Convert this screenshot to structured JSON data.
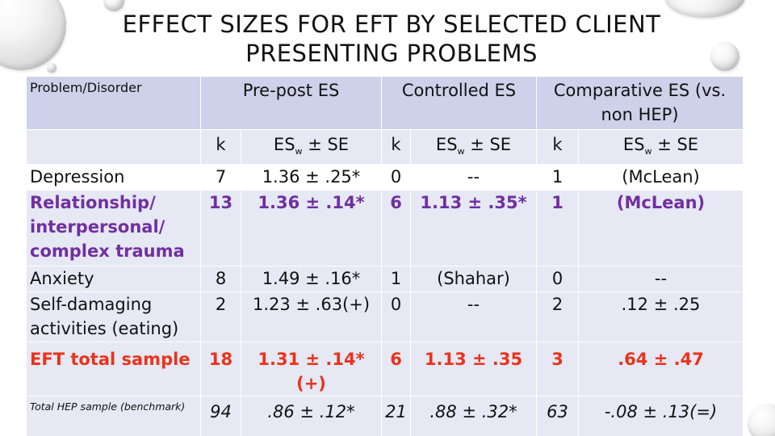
{
  "slide": {
    "title_line1": "EFFECT SIZES FOR EFT BY SELECTED CLIENT",
    "title_line2": "PRESENTING PROBLEMS"
  },
  "table": {
    "headers": {
      "problem": "Problem/Disorder",
      "prepost": "Pre-post ES",
      "controlled": "Controlled ES",
      "comparative": "Comparative ES (vs. non HEP)"
    },
    "sub": {
      "k": "k",
      "es": "ES",
      "es_sub": "w",
      "es_tail": " ± SE"
    },
    "rows": [
      {
        "label": "Depression",
        "k1": "7",
        "es1": "1.36 ± .25*",
        "k2": "0",
        "es2": "--",
        "k3": "1",
        "es3": "(McLean)"
      },
      {
        "label": "Relationship/ interpersonal/ complex trauma",
        "k1": "13",
        "es1": "1.36 ± .14*",
        "k2": "6",
        "es2": "1.13 ± .35*",
        "k3": "1",
        "es3": "(McLean)"
      },
      {
        "label": "Anxiety",
        "k1": "8",
        "es1": "1.49 ± .16*",
        "k2": "1",
        "es2": "(Shahar)",
        "k3": "0",
        "es3": "--"
      },
      {
        "label": "Self-damaging activities (eating)",
        "k1": "2",
        "es1": "1.23 ± .63(+)",
        "k2": "0",
        "es2": "--",
        "k3": "2",
        "es3": ".12 ± .25"
      },
      {
        "label": "EFT total sample",
        "k1": "18",
        "es1": "1.31 ± .14*(+)",
        "k2": "6",
        "es2": "1.13 ± .35",
        "k3": "3",
        "es3": ".64 ± .47"
      },
      {
        "label": "Total HEP sample (benchmark)",
        "k1": "94",
        "es1": ".86 ± .12*",
        "k2": "21",
        "es2": ".88 ± .32*",
        "k3": "63",
        "es3": "-.08 ± .13(=)"
      }
    ]
  },
  "colors": {
    "header_band": "#cdd2ea",
    "alt_band": "#e6e8f4",
    "purple_row": "#7030a0",
    "red_row": "#e8341c"
  }
}
